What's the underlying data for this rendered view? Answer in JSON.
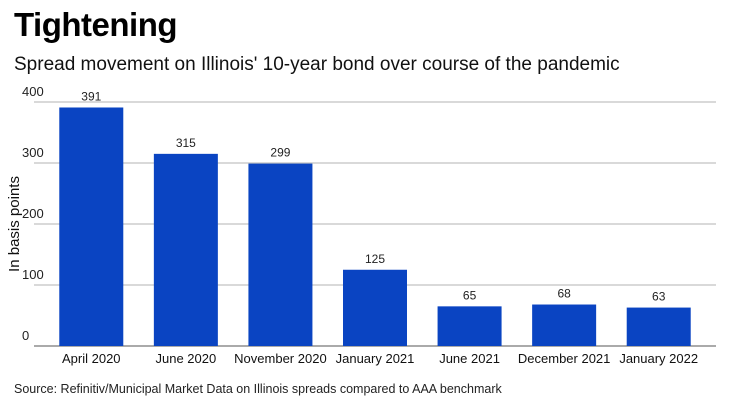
{
  "header": {
    "title": "Tightening",
    "subtitle": "Spread movement on Illinois' 10-year bond over course of the pandemic"
  },
  "footer": {
    "source": "Source: Refinitiv/Municipal Market Data on Illinois spreads compared to AAA benchmark"
  },
  "colors": {
    "bar": "#0a44c2",
    "grid": "#b3b3b3",
    "axis": "#555555"
  },
  "chart_data": {
    "type": "bar",
    "title": "Tightening",
    "subtitle": "Spread movement on Illinois' 10-year bond over course of the pandemic",
    "xlabel": "",
    "ylabel": "In basis points",
    "categories": [
      "April 2020",
      "June 2020",
      "November 2020",
      "January 2021",
      "June 2021",
      "December 2021",
      "January 2022"
    ],
    "values": [
      391,
      315,
      299,
      125,
      65,
      68,
      63
    ],
    "ylim": [
      0,
      400
    ],
    "yticks": [
      0,
      100,
      200,
      300,
      400
    ],
    "grid": true,
    "legend": "none"
  }
}
